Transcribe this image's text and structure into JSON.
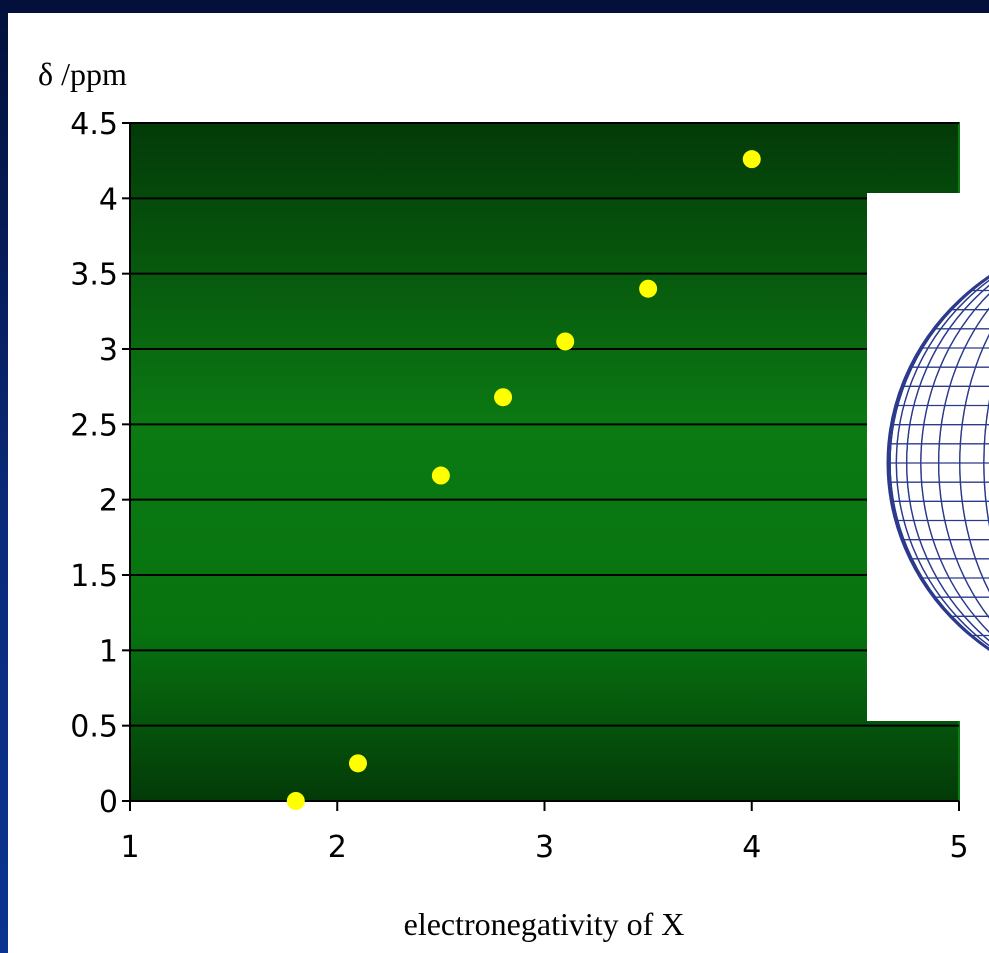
{
  "colors": {
    "frame": "#04123e",
    "plot_dark": "#043d0a",
    "plot_mid": "#0a7a12",
    "grid": "#000000",
    "point": "#ffff00",
    "inset_mesh": "#2b3a8c"
  },
  "inset": {
    "icon": "wireframe-sphere-icon"
  },
  "chart_data": {
    "type": "scatter",
    "title": "",
    "xlabel": "electronegativity of X",
    "ylabel": "δ /ppm",
    "xlim": [
      1,
      5
    ],
    "ylim": [
      0,
      4.5
    ],
    "x_ticks": [
      "1",
      "2",
      "3",
      "4",
      "5"
    ],
    "y_ticks": [
      "0",
      "0.5",
      "1",
      "1.5",
      "2",
      "2.5",
      "3",
      "3.5",
      "4",
      "4.5"
    ],
    "grid": "horizontal",
    "legend": "none",
    "series": [
      {
        "x": [
          1.8,
          2.1,
          2.5,
          2.8,
          3.1,
          3.5,
          4.0
        ],
        "y": [
          0.0,
          0.25,
          2.16,
          2.68,
          3.05,
          3.4,
          4.26
        ]
      }
    ]
  }
}
